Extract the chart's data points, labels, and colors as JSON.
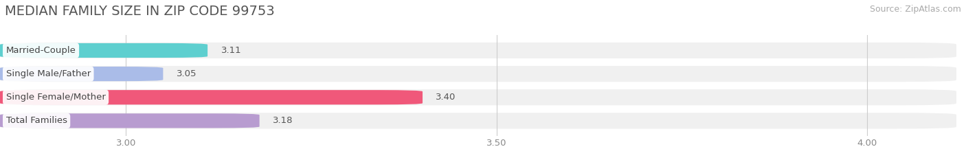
{
  "title": "MEDIAN FAMILY SIZE IN ZIP CODE 99753",
  "source": "Source: ZipAtlas.com",
  "categories": [
    "Married-Couple",
    "Single Male/Father",
    "Single Female/Mother",
    "Total Families"
  ],
  "values": [
    3.11,
    3.05,
    3.4,
    3.18
  ],
  "bar_colors": [
    "#5ecfcf",
    "#aabce8",
    "#f0587a",
    "#b89cd0"
  ],
  "xlim_left": 2.83,
  "xlim_right": 4.12,
  "xticks": [
    3.0,
    3.5,
    4.0
  ],
  "xtick_labels": [
    "3.00",
    "3.50",
    "4.00"
  ],
  "background_color": "#ffffff",
  "row_bg_color": "#f0f0f0",
  "title_fontsize": 14,
  "source_fontsize": 9,
  "label_fontsize": 9.5,
  "value_fontsize": 9.5
}
